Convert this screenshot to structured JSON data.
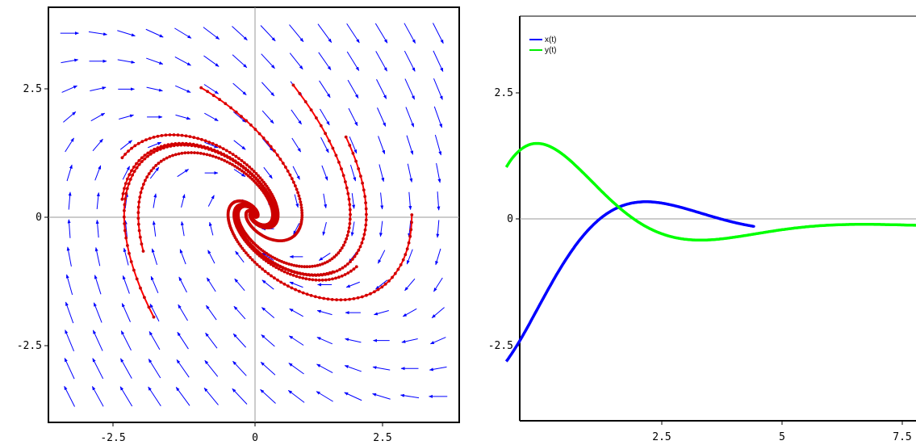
{
  "charts": [
    {
      "id": "phase",
      "xticks": [
        "-2.5",
        "0",
        "2.5"
      ],
      "yticks": [
        "2.5",
        "0",
        "-2.5"
      ]
    },
    {
      "id": "time",
      "xticks": [
        "2.5",
        "5",
        "7.5"
      ],
      "yticks": [
        "2.5",
        "0",
        "-2.5"
      ],
      "legend": [
        "x(t)",
        "y(t)"
      ]
    }
  ],
  "chart_data": [
    {
      "type": "scatter",
      "subtype": "phase portrait with direction field",
      "xlim": [
        -3.9,
        3.9
      ],
      "ylim": [
        -4.0,
        4.0
      ],
      "grid": false,
      "system": {
        "dx": "y",
        "dy": "-x - y"
      },
      "field_color": "#0000ff",
      "trajectory_color": "#ff0000",
      "trajectory_marker_color": "#cc0000",
      "initial_points": [
        [
          -2.5,
          1.1
        ],
        [
          -2.5,
          0.3
        ],
        [
          -2.1,
          -0.7
        ],
        [
          -1.9,
          -1.97
        ],
        [
          -1.0,
          2.45
        ],
        [
          0.75,
          2.5
        ],
        [
          1.75,
          1.5
        ],
        [
          3.0,
          0.0
        ],
        [
          1.95,
          -1.0
        ],
        [
          1.5,
          -1.1
        ]
      ],
      "t_span": [
        0,
        10
      ]
    },
    {
      "type": "line",
      "xlim": [
        0.3,
        9.1
      ],
      "ylim": [
        -3.6,
        3.9
      ],
      "grid": false,
      "legend": "top-left",
      "series": [
        {
          "name": "x(t)",
          "color": "#0000ff",
          "x0": -2.5,
          "y0": 1.1,
          "variable": "x",
          "t_range": [
            0,
            5.5
          ]
        },
        {
          "name": "y(t)",
          "color": "#00ff00",
          "x0": -2.5,
          "y0": 1.1,
          "variable": "y",
          "t_range": [
            0,
            9.1
          ]
        }
      ]
    }
  ]
}
